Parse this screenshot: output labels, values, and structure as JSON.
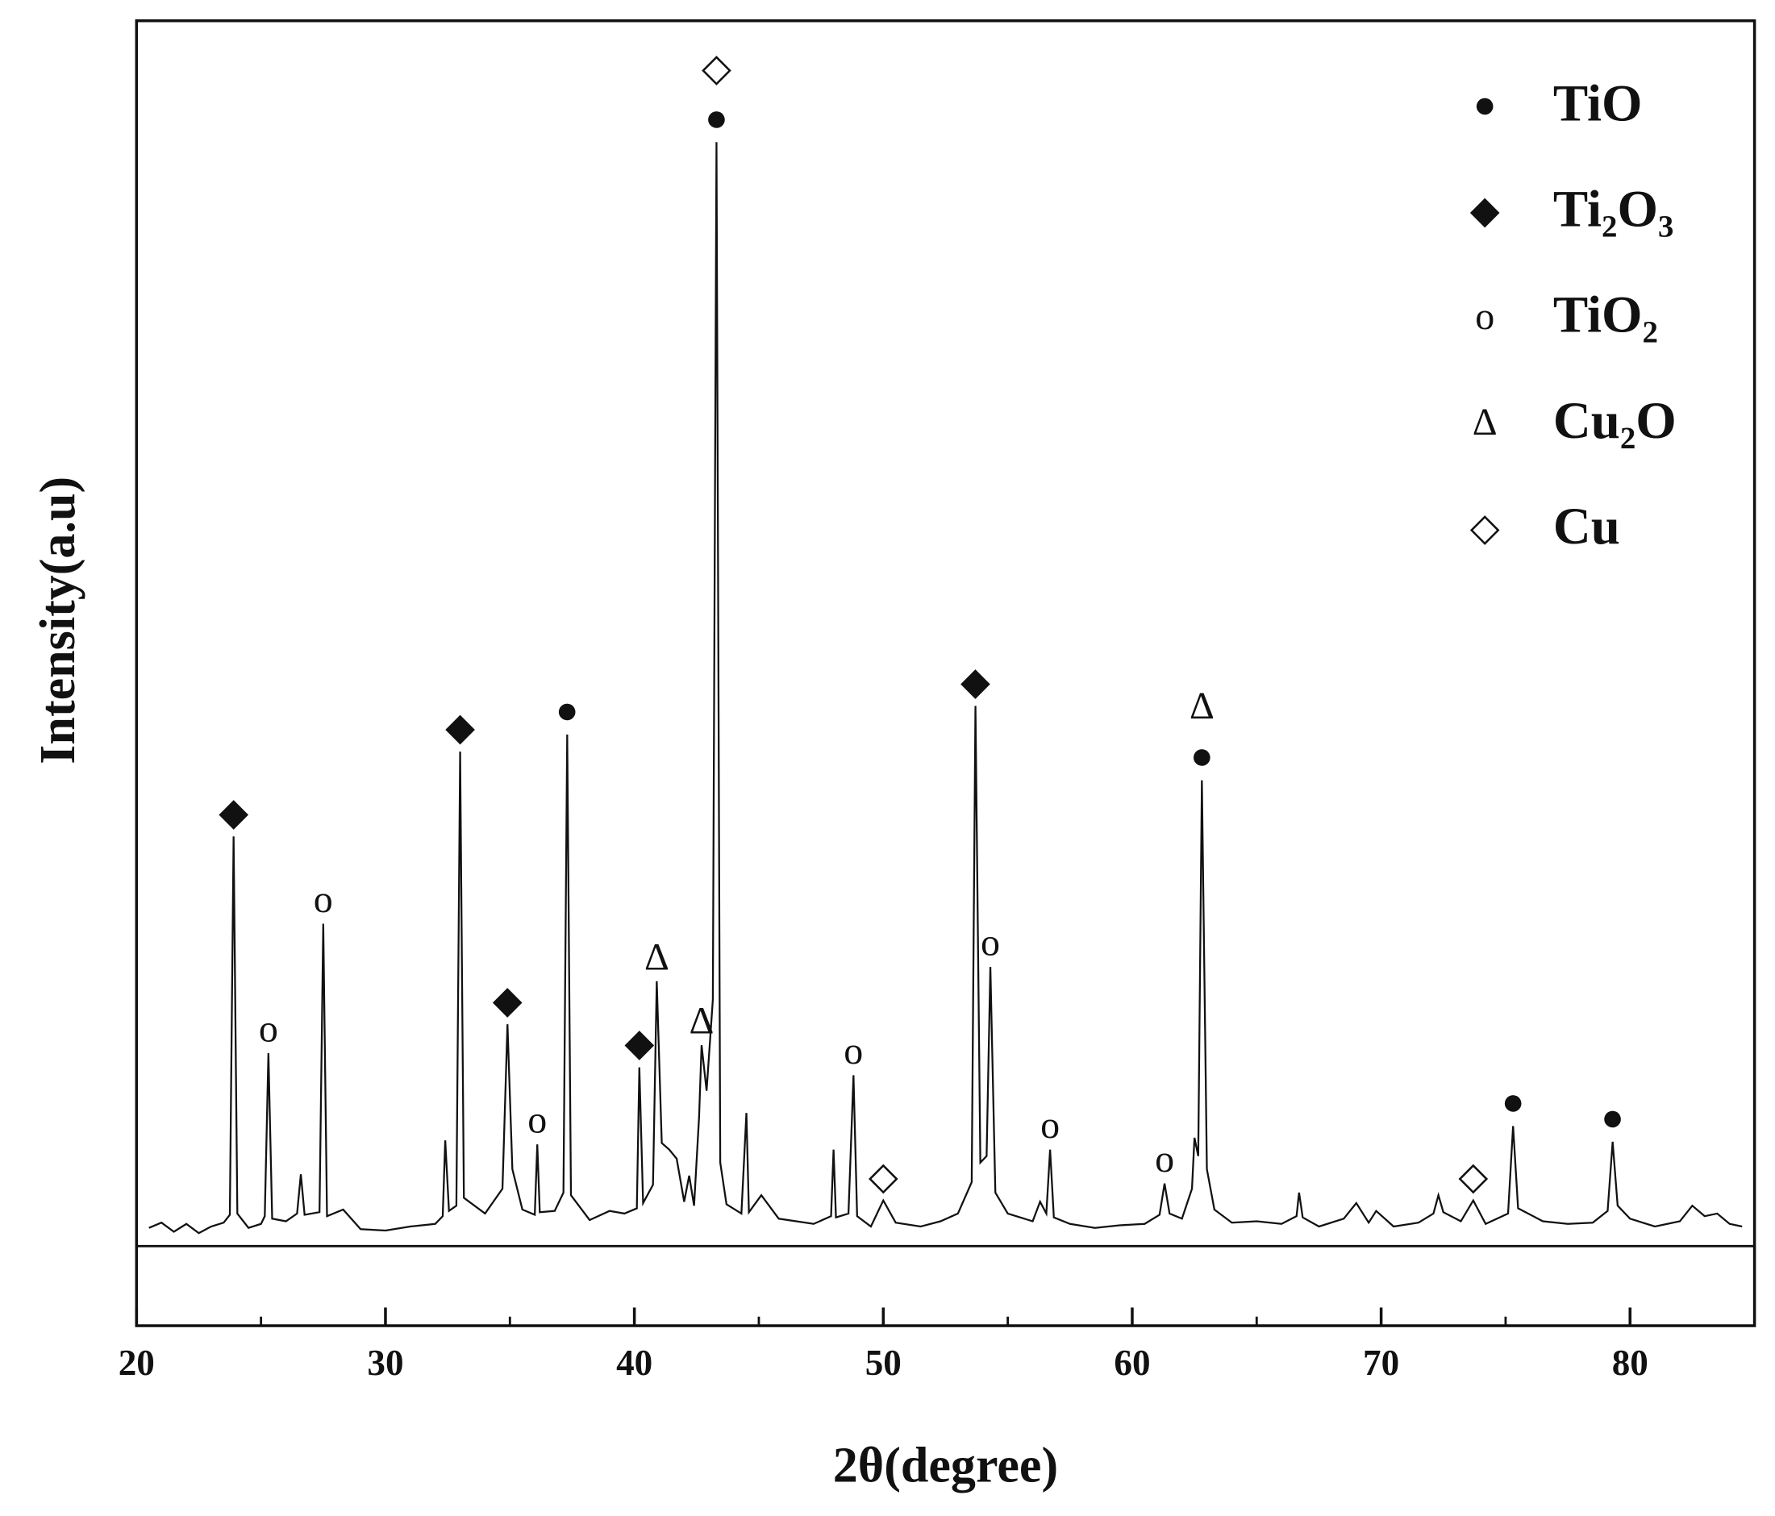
{
  "chart_data": {
    "type": "line",
    "xlabel": "2θ(degree)",
    "ylabel": "Intensity(a.u)",
    "xlim": [
      20,
      85
    ],
    "xticks": [
      20,
      30,
      40,
      50,
      60,
      70,
      80
    ],
    "x_minor_ticks": [
      25,
      35,
      45,
      55,
      65,
      75,
      85
    ],
    "ylim": [
      0,
      100
    ],
    "reference_line": 6.1,
    "series": [
      {
        "color": "#111111",
        "x": [
          20.5,
          21,
          21.5,
          22,
          22.5,
          23,
          23.5,
          23.75,
          23.9,
          24.05,
          24.5,
          25,
          25.15,
          25.3,
          25.45,
          26,
          26.45,
          26.6,
          26.75,
          27.35,
          27.5,
          27.65,
          28.3,
          29,
          30,
          31,
          32,
          32.3,
          32.4,
          32.55,
          32.85,
          33.0,
          33.15,
          34.0,
          34.7,
          34.9,
          35.1,
          35.5,
          36.0,
          36.1,
          36.2,
          36.8,
          37.15,
          37.3,
          37.45,
          38.2,
          39,
          39.6,
          40.1,
          40.2,
          40.35,
          40.75,
          40.9,
          41.1,
          41.4,
          41.7,
          42.0,
          42.2,
          42.4,
          42.6,
          42.7,
          42.9,
          43.15,
          43.3,
          43.45,
          43.7,
          44.3,
          44.5,
          44.6,
          45.1,
          45.8,
          46.5,
          47.2,
          47.9,
          48.0,
          48.1,
          48.6,
          48.8,
          48.95,
          49.5,
          50.0,
          50.5,
          51.5,
          52.3,
          53.0,
          53.55,
          53.7,
          53.9,
          54.15,
          54.3,
          54.5,
          55.0,
          56.0,
          56.3,
          56.55,
          56.7,
          56.85,
          57.5,
          58.5,
          59.5,
          60.5,
          61.1,
          61.3,
          61.5,
          62.0,
          62.4,
          62.5,
          62.65,
          62.8,
          63.0,
          63.3,
          64,
          65,
          66,
          66.6,
          66.7,
          66.85,
          67.5,
          68.5,
          69.0,
          69.5,
          69.8,
          70.5,
          71.5,
          72.1,
          72.3,
          72.5,
          73.2,
          73.7,
          74.2,
          75.1,
          75.3,
          75.5,
          76.5,
          77.5,
          78.5,
          79.1,
          79.3,
          79.5,
          80,
          81,
          82,
          82.5,
          83,
          83.5,
          84,
          84.5
        ],
        "values": [
          7.5,
          7.9,
          7.2,
          7.8,
          7.1,
          7.6,
          7.9,
          8.5,
          37.5,
          8.6,
          7.5,
          7.8,
          8.4,
          20.9,
          8.2,
          8.0,
          8.6,
          11.6,
          8.5,
          8.7,
          30.8,
          8.4,
          8.9,
          7.4,
          7.3,
          7.6,
          7.8,
          8.4,
          14.2,
          8.8,
          9.2,
          44.0,
          9.8,
          8.6,
          10.5,
          23.1,
          12.0,
          8.9,
          8.5,
          13.9,
          8.7,
          8.8,
          10.2,
          45.3,
          10.0,
          8.1,
          8.8,
          8.6,
          9.0,
          19.8,
          9.4,
          10.8,
          26.4,
          14.0,
          13.5,
          12.8,
          9.5,
          11.5,
          9.2,
          16.0,
          21.5,
          18.0,
          25,
          90.7,
          12.5,
          9.3,
          8.6,
          16.3,
          8.7,
          10.0,
          8.2,
          8.0,
          7.8,
          8.4,
          13.5,
          8.3,
          8.6,
          19.2,
          8.4,
          7.6,
          9.6,
          7.9,
          7.6,
          8.0,
          8.6,
          11.0,
          47.5,
          12.5,
          13,
          27.5,
          10.2,
          8.6,
          8.0,
          9.5,
          8.6,
          13.5,
          8.3,
          7.8,
          7.5,
          7.7,
          7.8,
          8.5,
          10.9,
          8.6,
          8.2,
          10.5,
          14.4,
          13,
          41.8,
          12,
          8.9,
          7.9,
          8.0,
          7.8,
          8.4,
          10.2,
          8.3,
          7.6,
          8.2,
          9.4,
          7.9,
          8.8,
          7.6,
          7.9,
          8.6,
          10.0,
          8.7,
          8.0,
          9.6,
          7.8,
          8.6,
          15.3,
          9.0,
          8.0,
          7.8,
          7.9,
          8.8,
          14.1,
          9.2,
          8.2,
          7.6,
          8.0,
          9.2,
          8.4,
          8.6,
          7.8,
          7.6
        ]
      }
    ],
    "phases": [
      {
        "symbol": "●",
        "name": "TiO"
      },
      {
        "symbol": "◆",
        "name": "Ti₂O₃"
      },
      {
        "symbol": "o",
        "name": "TiO₂"
      },
      {
        "symbol": "Δ",
        "name": "Cu₂O"
      },
      {
        "symbol": "◇",
        "name": "Cu"
      }
    ],
    "annotations": [
      {
        "x": 23.9,
        "phase": 1
      },
      {
        "x": 25.3,
        "phase": 2
      },
      {
        "x": 27.5,
        "phase": 2
      },
      {
        "x": 33.0,
        "phase": 1
      },
      {
        "x": 34.9,
        "phase": 1
      },
      {
        "x": 36.1,
        "phase": 2
      },
      {
        "x": 37.3,
        "phase": 0
      },
      {
        "x": 40.2,
        "phase": 1
      },
      {
        "x": 40.9,
        "phase": 3
      },
      {
        "x": 42.7,
        "phase": 3
      },
      {
        "x": 43.3,
        "phase": 0
      },
      {
        "x": 43.3,
        "phase": 4
      },
      {
        "x": 48.8,
        "phase": 2
      },
      {
        "x": 50.0,
        "phase": 4
      },
      {
        "x": 53.7,
        "phase": 1
      },
      {
        "x": 54.3,
        "phase": 2
      },
      {
        "x": 56.7,
        "phase": 2
      },
      {
        "x": 61.3,
        "phase": 2
      },
      {
        "x": 62.8,
        "phase": 0
      },
      {
        "x": 62.8,
        "phase": 3
      },
      {
        "x": 73.7,
        "phase": 4
      },
      {
        "x": 75.3,
        "phase": 0
      },
      {
        "x": 79.3,
        "phase": 0
      }
    ],
    "legend": "upper right"
  }
}
